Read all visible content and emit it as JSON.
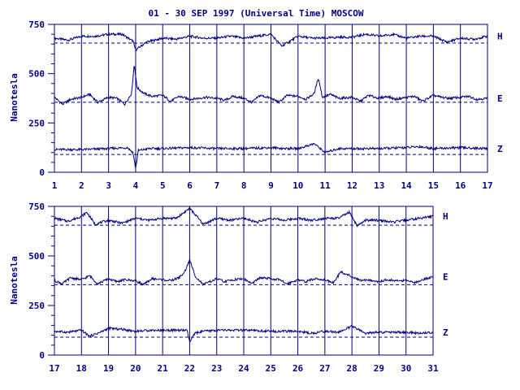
{
  "chart_data": [
    {
      "type": "line",
      "title": "01 - 30 SEP 1997 (Universal Time) MOSCOW",
      "ylabel": "Nanotesla",
      "xlim": [
        1,
        17
      ],
      "ylim": [
        0,
        750
      ],
      "x_ticks": [
        "1",
        "2",
        "3",
        "4",
        "5",
        "6",
        "7",
        "8",
        "9",
        "10",
        "11",
        "12",
        "13",
        "14",
        "15",
        "16",
        "17"
      ],
      "y_ticks": [
        "0",
        "250",
        "500",
        "750"
      ],
      "grid": "vertical at each day",
      "baselines": [
        {
          "series": "H",
          "value": 655
        },
        {
          "series": "E",
          "value": 355
        },
        {
          "series": "Z",
          "value": 90
        }
      ],
      "series": [
        {
          "name": "H",
          "x": [
            1,
            1.5,
            2,
            2.5,
            3,
            3.5,
            3.9,
            4,
            4.4,
            5,
            5.5,
            6,
            6.5,
            7,
            7.5,
            8,
            8.5,
            9,
            9.4,
            10,
            10.5,
            11,
            11.5,
            12,
            12.5,
            13,
            13.5,
            14,
            14.5,
            15,
            15.5,
            16,
            16.5,
            17
          ],
          "values": [
            680,
            670,
            690,
            690,
            700,
            700,
            665,
            620,
            660,
            680,
            675,
            690,
            680,
            680,
            690,
            680,
            690,
            700,
            640,
            690,
            680,
            680,
            685,
            685,
            700,
            690,
            700,
            680,
            690,
            690,
            660,
            680,
            675,
            690
          ]
        },
        {
          "name": "E",
          "x": [
            1,
            1.3,
            1.6,
            2,
            2.3,
            2.6,
            3,
            3.3,
            3.6,
            3.85,
            3.95,
            4.05,
            4.3,
            4.6,
            5,
            5.3,
            5.6,
            6,
            6.3,
            6.6,
            7,
            7.3,
            7.6,
            8,
            8.3,
            8.6,
            9,
            9.3,
            9.6,
            10,
            10.3,
            10.6,
            10.75,
            10.9,
            11.2,
            11.5,
            12,
            12.3,
            12.6,
            13,
            13.3,
            13.6,
            14,
            14.3,
            14.6,
            15,
            15.3,
            15.6,
            16,
            16.3,
            16.6,
            17
          ],
          "values": [
            380,
            345,
            370,
            380,
            395,
            355,
            380,
            375,
            345,
            400,
            550,
            430,
            400,
            385,
            390,
            360,
            385,
            370,
            375,
            380,
            375,
            365,
            385,
            375,
            355,
            390,
            375,
            355,
            390,
            385,
            370,
            400,
            480,
            380,
            395,
            375,
            380,
            360,
            390,
            375,
            385,
            370,
            380,
            385,
            360,
            390,
            380,
            375,
            380,
            385,
            370,
            375
          ]
        },
        {
          "name": "Z",
          "x": [
            1,
            2,
            3,
            3.7,
            3.9,
            4,
            4.1,
            4.5,
            5,
            6,
            7,
            8,
            9,
            9.5,
            10,
            10.6,
            11,
            11.5,
            12,
            13,
            14,
            14.5,
            15,
            16,
            17
          ],
          "values": [
            115,
            115,
            120,
            125,
            100,
            20,
            110,
            120,
            120,
            125,
            120,
            120,
            125,
            120,
            120,
            145,
            100,
            120,
            120,
            120,
            125,
            130,
            120,
            125,
            120
          ]
        }
      ]
    },
    {
      "type": "line",
      "title": "",
      "ylabel": "Nanotesla",
      "xlim": [
        17,
        31
      ],
      "ylim": [
        0,
        750
      ],
      "x_ticks": [
        "17",
        "18",
        "19",
        "20",
        "21",
        "22",
        "23",
        "24",
        "25",
        "26",
        "27",
        "28",
        "29",
        "30",
        "31"
      ],
      "y_ticks": [
        "0",
        "250",
        "500",
        "750"
      ],
      "grid": "vertical at each day",
      "baselines": [
        {
          "series": "H",
          "value": 655
        },
        {
          "series": "E",
          "value": 355
        },
        {
          "series": "Z",
          "value": 90
        }
      ],
      "series": [
        {
          "name": "H",
          "x": [
            17,
            17.5,
            18,
            18.2,
            18.5,
            19,
            19.5,
            20,
            20.5,
            21,
            21.5,
            21.8,
            22,
            22.2,
            22.5,
            23,
            23.5,
            24,
            24.5,
            25,
            25.5,
            26,
            26.5,
            27,
            27.5,
            27.9,
            28.2,
            28.5,
            29,
            29.5,
            30,
            30.5,
            31
          ],
          "values": [
            690,
            675,
            700,
            720,
            660,
            680,
            665,
            690,
            680,
            690,
            690,
            720,
            740,
            710,
            660,
            690,
            680,
            690,
            670,
            690,
            680,
            690,
            680,
            690,
            690,
            720,
            650,
            680,
            680,
            670,
            680,
            690,
            700
          ]
        },
        {
          "name": "E",
          "x": [
            17,
            17.3,
            17.6,
            18,
            18.3,
            18.6,
            19,
            19.3,
            19.6,
            20,
            20.3,
            20.6,
            21,
            21.3,
            21.6,
            21.8,
            22,
            22.2,
            22.5,
            23,
            23.3,
            23.6,
            24,
            24.3,
            24.6,
            25,
            25.3,
            25.6,
            26,
            26.3,
            26.6,
            27,
            27.3,
            27.6,
            28,
            28.3,
            28.6,
            29,
            29.3,
            29.6,
            30,
            30.3,
            30.6,
            31
          ],
          "values": [
            375,
            360,
            390,
            380,
            400,
            360,
            385,
            370,
            380,
            375,
            355,
            385,
            380,
            375,
            390,
            415,
            480,
            400,
            355,
            385,
            370,
            380,
            385,
            360,
            390,
            385,
            380,
            360,
            380,
            370,
            385,
            380,
            365,
            420,
            395,
            375,
            380,
            370,
            380,
            375,
            375,
            365,
            380,
            395
          ]
        },
        {
          "name": "Z",
          "x": [
            17,
            17.5,
            18,
            18.3,
            18.7,
            19,
            19.5,
            20,
            20.5,
            21,
            21.5,
            21.9,
            22,
            22.2,
            22.5,
            23,
            24,
            25,
            26,
            26.5,
            27,
            27.5,
            28,
            28.5,
            29,
            30,
            30.5,
            31
          ],
          "values": [
            120,
            115,
            125,
            95,
            115,
            135,
            130,
            120,
            125,
            125,
            125,
            125,
            65,
            110,
            120,
            125,
            125,
            120,
            120,
            110,
            120,
            115,
            145,
            110,
            115,
            115,
            110,
            115
          ]
        }
      ]
    }
  ]
}
